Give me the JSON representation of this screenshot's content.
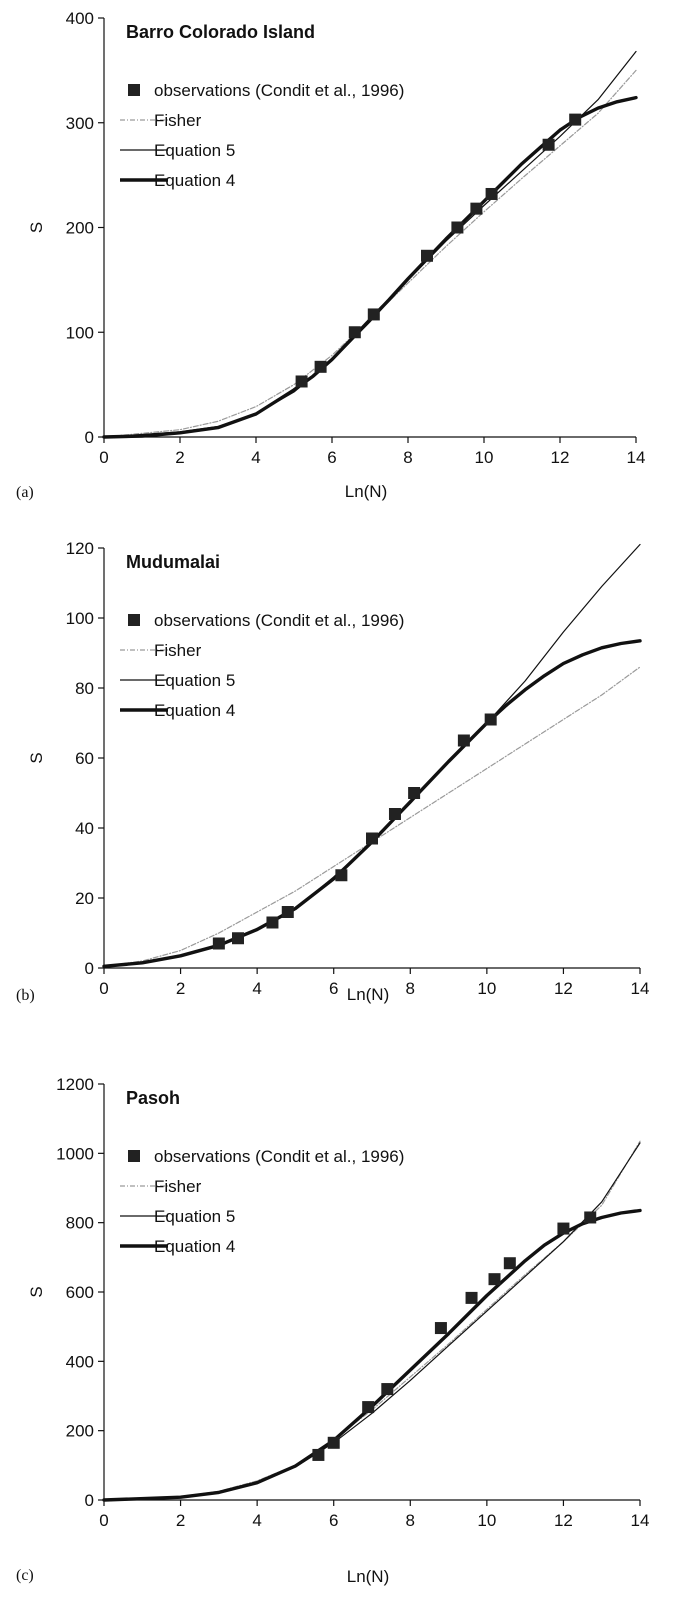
{
  "chart_data": [
    {
      "type": "line",
      "panel": "(a)",
      "title": "Barro Colorado Island",
      "xlabel": "Ln(N)",
      "ylabel": "S",
      "xlim": [
        0,
        14
      ],
      "ylim": [
        0,
        400
      ],
      "xticks": [
        0,
        2,
        4,
        6,
        8,
        10,
        12,
        14
      ],
      "yticks": [
        0,
        100,
        200,
        300,
        400
      ],
      "grid": false,
      "legend_position": "top-left",
      "legend": [
        "observations (Condit et al., 1996)",
        "Fisher",
        "Equation 5",
        "Equation 4"
      ],
      "series": [
        {
          "name": "observations (Condit et al., 1996)",
          "kind": "markers",
          "x": [
            5.2,
            5.7,
            6.6,
            7.1,
            8.5,
            9.3,
            9.8,
            10.2,
            11.7,
            12.4
          ],
          "y": [
            53,
            67,
            100,
            117,
            173,
            200,
            218,
            232,
            279,
            303
          ]
        },
        {
          "name": "Fisher",
          "kind": "thin-gray",
          "x": [
            0,
            2,
            3,
            4,
            5,
            6,
            7,
            8,
            9,
            10,
            11,
            12,
            13,
            14
          ],
          "y": [
            0,
            7,
            15,
            29,
            50,
            78,
            112,
            147,
            182,
            215,
            247,
            278,
            309,
            350
          ]
        },
        {
          "name": "Equation 5",
          "kind": "thin-black",
          "x": [
            0,
            2,
            3,
            4,
            5,
            6,
            7,
            8,
            9,
            10,
            11,
            12,
            13,
            14
          ],
          "y": [
            0,
            5,
            10,
            22,
            43,
            73,
            110,
            150,
            187,
            221,
            254,
            287,
            322,
            368
          ]
        },
        {
          "name": "Equation 4",
          "kind": "thick-black",
          "x": [
            0,
            1,
            2,
            3,
            4,
            5,
            5.5,
            6,
            6.5,
            7,
            7.5,
            8,
            8.5,
            9,
            9.5,
            10,
            10.5,
            11,
            11.5,
            12,
            12.5,
            13,
            13.5,
            14
          ],
          "y": [
            0,
            1,
            4,
            9,
            22,
            45,
            58,
            74,
            93,
            112,
            131,
            151,
            170,
            189,
            207,
            225,
            243,
            261,
            277,
            293,
            305,
            314,
            320,
            324
          ]
        }
      ]
    },
    {
      "type": "line",
      "panel": "(b)",
      "title": "Mudumalai",
      "xlabel": "Ln(N)",
      "ylabel": "S",
      "xlim": [
        0,
        14
      ],
      "ylim": [
        0,
        120
      ],
      "xticks": [
        0,
        2,
        4,
        6,
        8,
        10,
        12,
        14
      ],
      "yticks": [
        0,
        20,
        40,
        60,
        80,
        100,
        120
      ],
      "grid": false,
      "legend_position": "top-left",
      "legend": [
        "observations (Condit et al., 1996)",
        "Fisher",
        "Equation 5",
        "Equation 4"
      ],
      "series": [
        {
          "name": "observations (Condit et al., 1996)",
          "kind": "markers",
          "x": [
            3.0,
            3.5,
            4.4,
            4.8,
            6.2,
            7.0,
            7.6,
            8.1,
            9.4,
            10.1
          ],
          "y": [
            7,
            8.5,
            13,
            16,
            26.5,
            37,
            44,
            50,
            65,
            71
          ]
        },
        {
          "name": "Fisher",
          "kind": "thin-gray",
          "x": [
            0,
            1,
            2,
            3,
            4,
            5,
            6,
            7,
            8,
            9,
            10,
            11,
            12,
            13,
            14
          ],
          "y": [
            0.5,
            2,
            5,
            10,
            16,
            22,
            29,
            36,
            43,
            50,
            57,
            64,
            71,
            78,
            86
          ]
        },
        {
          "name": "Equation 5",
          "kind": "thin-black",
          "x": [
            0,
            1,
            2,
            3,
            4,
            5,
            6,
            7,
            8,
            9,
            10,
            11,
            12,
            13,
            14
          ],
          "y": [
            0.5,
            1.5,
            3.5,
            6.5,
            11,
            17,
            26,
            36,
            47,
            59,
            70,
            82,
            96,
            109,
            121
          ]
        },
        {
          "name": "Equation 4",
          "kind": "thick-black",
          "x": [
            0,
            1,
            2,
            3,
            4,
            5,
            6,
            7,
            8,
            9,
            10,
            10.5,
            11,
            11.5,
            12,
            12.5,
            13,
            13.5,
            14
          ],
          "y": [
            0.5,
            1.5,
            3.5,
            6.5,
            11,
            17,
            25.5,
            36,
            47.5,
            59,
            70,
            75,
            79.5,
            83.5,
            87,
            89.5,
            91.5,
            92.7,
            93.5
          ]
        }
      ]
    },
    {
      "type": "line",
      "panel": "(c)",
      "title": "Pasoh",
      "xlabel": "Ln(N)",
      "ylabel": "S",
      "xlim": [
        0,
        14
      ],
      "ylim": [
        0,
        1200
      ],
      "xticks": [
        0,
        2,
        4,
        6,
        8,
        10,
        12,
        14
      ],
      "yticks": [
        0,
        200,
        400,
        600,
        800,
        1000,
        1200
      ],
      "grid": false,
      "legend_position": "top-left",
      "legend": [
        "observations (Condit et al., 1996)",
        "Fisher",
        "Equation 5",
        "Equation 4"
      ],
      "series": [
        {
          "name": "observations (Condit et al., 1996)",
          "kind": "markers",
          "x": [
            5.6,
            6.0,
            6.9,
            7.4,
            8.8,
            9.6,
            10.2,
            10.6,
            12.0,
            12.7
          ],
          "y": [
            130,
            165,
            268,
            320,
            496,
            583,
            637,
            683,
            783,
            815
          ]
        },
        {
          "name": "Fisher",
          "kind": "thin-gray",
          "x": [
            0,
            2,
            3,
            4,
            5,
            6,
            7,
            8,
            9,
            10,
            11,
            12,
            13,
            14
          ],
          "y": [
            0,
            10,
            25,
            55,
            100,
            175,
            260,
            355,
            450,
            550,
            650,
            745,
            850,
            1035
          ]
        },
        {
          "name": "Equation 5",
          "kind": "thin-black",
          "x": [
            0,
            2,
            3,
            4,
            5,
            6,
            7,
            8,
            9,
            10,
            11,
            12,
            13,
            14
          ],
          "y": [
            0,
            8,
            22,
            50,
            95,
            165,
            250,
            345,
            445,
            545,
            645,
            745,
            860,
            1030
          ]
        },
        {
          "name": "Equation 4",
          "kind": "thick-black",
          "x": [
            0,
            2,
            3,
            4,
            5,
            6,
            7,
            8,
            9,
            10,
            11,
            11.5,
            12,
            12.5,
            13,
            13.5,
            14
          ],
          "y": [
            0,
            8,
            22,
            50,
            98,
            172,
            270,
            375,
            480,
            590,
            690,
            735,
            770,
            797,
            815,
            828,
            835
          ]
        }
      ]
    }
  ]
}
